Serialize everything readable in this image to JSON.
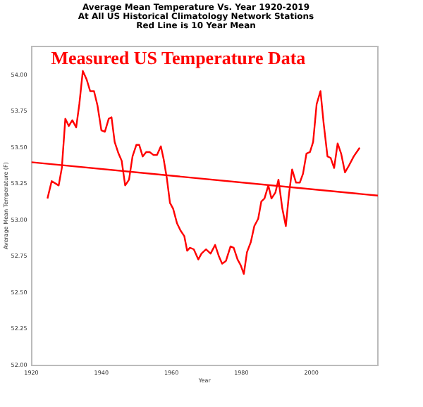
{
  "chart_data": {
    "type": "line",
    "title": "Average Mean Temperature Vs. Year 1920-2019\nAt All US Historical Climatology Network Stations\nRed Line is 10 Year Mean",
    "xlabel": "Year",
    "ylabel": "Average Mean Temperature (F)",
    "annotations": [
      "Measured US Temperature Data"
    ],
    "xlim": [
      1920,
      2019
    ],
    "xticks": [
      1920,
      1940,
      1960,
      1980,
      2000
    ],
    "ylim": [
      52,
      54.2
    ],
    "yticks": [
      {
        "value": 52,
        "label": "52.00"
      },
      {
        "value": 52.25,
        "label": "52.25"
      },
      {
        "value": 52.5,
        "label": "52.50"
      },
      {
        "value": 52.75,
        "label": "52.75"
      },
      {
        "value": 53,
        "label": "53.00"
      },
      {
        "value": 53.25,
        "label": "53.25"
      },
      {
        "value": 53.5,
        "label": "53.50"
      },
      {
        "value": 53.75,
        "label": "53.75"
      },
      {
        "value": 54,
        "label": "54.00"
      }
    ],
    "grid": false,
    "legend": false,
    "marker": "none",
    "line_style": "solid",
    "series": [
      {
        "color": "#ff0000",
        "x": [
          1924.6,
          1925.8,
          1927.8,
          1928.7,
          1929.7,
          1930.7,
          1931.7,
          1932.8,
          1933.7,
          1934.7,
          1935.8,
          1936.8,
          1937.9,
          1938.9,
          1940,
          1941,
          1942.1,
          1942.9,
          1943.8,
          1944.9,
          1945.8,
          1946.8,
          1947.9,
          1948.9,
          1950,
          1950.8,
          1951.8,
          1952.8,
          1953.8,
          1954.9,
          1955.9,
          1957,
          1957.8,
          1958.7,
          1959.6,
          1960.5,
          1961.6,
          1962.6,
          1963.7,
          1964.5,
          1965.3,
          1966.4,
          1967.7,
          1968.6,
          1969.9,
          1971.2,
          1972.5,
          1973.6,
          1974.5,
          1975.6,
          1976.9,
          1977.8,
          1978.9,
          1979.8,
          1980.7,
          1981.6,
          1982.7,
          1983.7,
          1984.8,
          1985.7,
          1986.6,
          1987.7,
          1988.6,
          1989.7,
          1990.6,
          1991.7,
          1992.7,
          1993.6,
          1994.5,
          1995.6,
          1996.7,
          1997.6,
          1998.6,
          1999.6,
          2000.5,
          2001.5,
          2002.6,
          2003.5,
          2004.6,
          2005.5,
          2006.5,
          2007.5,
          2008.5,
          2009.6,
          2010.8,
          2012.1,
          2013.8
        ],
        "values": [
          53.15,
          53.27,
          53.24,
          53.36,
          53.7,
          53.65,
          53.69,
          53.64,
          53.8,
          54.03,
          53.97,
          53.89,
          53.89,
          53.79,
          53.62,
          53.61,
          53.7,
          53.71,
          53.54,
          53.46,
          53.41,
          53.24,
          53.28,
          53.44,
          53.52,
          53.52,
          53.44,
          53.47,
          53.47,
          53.45,
          53.45,
          53.51,
          53.42,
          53.29,
          53.12,
          53.08,
          52.98,
          52.93,
          52.89,
          52.79,
          52.81,
          52.8,
          52.73,
          52.77,
          52.8,
          52.77,
          52.83,
          52.75,
          52.7,
          52.72,
          52.82,
          52.81,
          52.73,
          52.69,
          52.63,
          52.78,
          52.85,
          52.96,
          53.01,
          53.13,
          53.15,
          53.24,
          53.15,
          53.19,
          53.28,
          53.08,
          52.96,
          53.18,
          53.35,
          53.26,
          53.26,
          53.32,
          53.46,
          53.47,
          53.54,
          53.8,
          53.89,
          53.67,
          53.44,
          53.43,
          53.36,
          53.53,
          53.46,
          53.33,
          53.38,
          53.44,
          53.5
        ]
      },
      {
        "type": "line",
        "color": "#ff0000",
        "x": [
          1920,
          2019
        ],
        "values": [
          53.4,
          53.17
        ]
      }
    ]
  }
}
